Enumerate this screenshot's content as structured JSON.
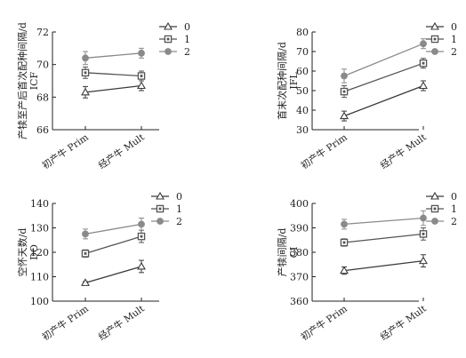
{
  "chart_data": [
    {
      "type": "line",
      "ylabel": [
        "产犊至产后首次配种间隔/d",
        "ICF"
      ],
      "categories": [
        "初产牛 Prim",
        "经产牛 Mult"
      ],
      "yticks": [
        66,
        68,
        70,
        72
      ],
      "ylim": [
        66,
        72
      ],
      "grid": false,
      "legend": "top-right",
      "series": [
        {
          "name": "0",
          "values": [
            68.3,
            68.7
          ],
          "err": [
            0.35,
            0.3
          ]
        },
        {
          "name": "1",
          "values": [
            69.5,
            69.3
          ],
          "err": [
            0.35,
            0.3
          ]
        },
        {
          "name": "2",
          "values": [
            70.4,
            70.7
          ],
          "err": [
            0.4,
            0.3
          ]
        }
      ]
    },
    {
      "type": "line",
      "ylabel": [
        "首末次配种间隔/d",
        "IFL"
      ],
      "categories": [
        "初产牛 Prim",
        "经产牛 Mult"
      ],
      "yticks": [
        30,
        40,
        50,
        60,
        70,
        80
      ],
      "ylim": [
        30,
        80
      ],
      "grid": false,
      "legend": "top-right",
      "series": [
        {
          "name": "0",
          "values": [
            37,
            52.5
          ],
          "err": [
            2.5,
            2.5
          ]
        },
        {
          "name": "1",
          "values": [
            49.5,
            64
          ],
          "err": [
            3,
            2.5
          ]
        },
        {
          "name": "2",
          "values": [
            57.5,
            74
          ],
          "err": [
            3.5,
            2.5
          ]
        }
      ]
    },
    {
      "type": "line",
      "ylabel": [
        "空怀天数/d",
        "DO"
      ],
      "categories": [
        "初产牛 Prim",
        "经产牛 Mult"
      ],
      "yticks": [
        100,
        110,
        120,
        130,
        140
      ],
      "ylim": [
        100,
        140
      ],
      "grid": false,
      "legend": "top-right",
      "series": [
        {
          "name": "0",
          "values": [
            107.5,
            114.2
          ],
          "err": [
            0.5,
            2.5
          ]
        },
        {
          "name": "1",
          "values": [
            119.5,
            126.5
          ],
          "err": [
            1.5,
            2.5
          ]
        },
        {
          "name": "2",
          "values": [
            127.5,
            131.5
          ],
          "err": [
            2,
            2.5
          ]
        }
      ]
    },
    {
      "type": "line",
      "ylabel": [
        "产犊间隔/d",
        "CI"
      ],
      "categories": [
        "初产牛 Prim",
        "经产牛 Mult"
      ],
      "yticks": [
        360,
        370,
        380,
        390,
        400
      ],
      "ylim": [
        360,
        400
      ],
      "grid": false,
      "legend": "top-right",
      "series": [
        {
          "name": "0",
          "values": [
            372.5,
            376.5
          ],
          "err": [
            1.5,
            2.5
          ]
        },
        {
          "name": "1",
          "values": [
            384,
            387.5
          ],
          "err": [
            1.5,
            2.5
          ]
        },
        {
          "name": "2",
          "values": [
            391.5,
            394
          ],
          "err": [
            2,
            3
          ]
        }
      ]
    }
  ],
  "styles": {
    "series_colors": [
      "#3a3a3a",
      "#555555",
      "#8a8a8a"
    ],
    "marker_fill": [
      "#ffffff",
      "#ffffff",
      "#8a8a8a"
    ],
    "markers": [
      "triangle-open",
      "square-open",
      "circle-filled"
    ],
    "axis_color": "#222222"
  }
}
